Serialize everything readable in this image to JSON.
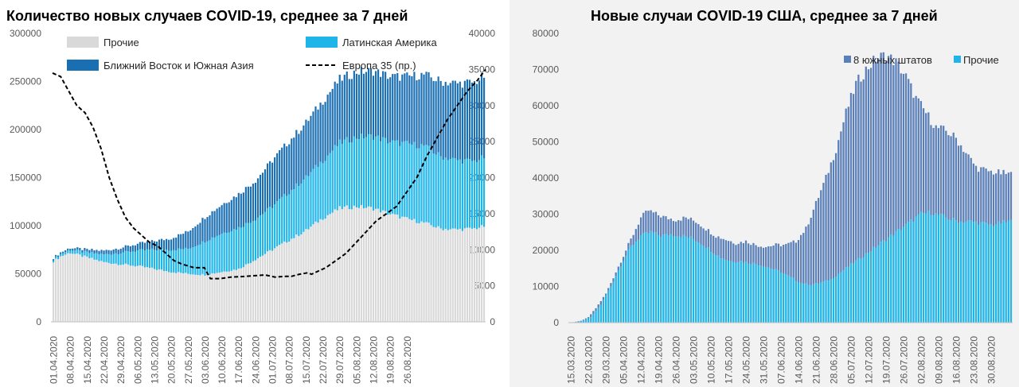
{
  "chart_data": [
    {
      "type": "stacked-bar+line",
      "title": "Количество новых случаев COVID-19, среднее за 7 дней",
      "x_labels": [
        "01.04.2020",
        "08.04.2020",
        "15.04.2020",
        "22.04.2020",
        "29.04.2020",
        "06.05.2020",
        "13.05.2020",
        "20.05.2020",
        "27.05.2020",
        "03.06.2020",
        "10.06.2020",
        "17.06.2020",
        "24.06.2020",
        "01.07.2020",
        "08.07.2020",
        "15.07.2020",
        "22.07.2020",
        "29.07.2020",
        "05.08.2020",
        "12.08.2020",
        "19.08.2020",
        "26.08.2020"
      ],
      "y_left_ticks": [
        "0",
        "50000",
        "100000",
        "150000",
        "200000",
        "250000",
        "300000"
      ],
      "y_right_ticks": [
        "0",
        "5000",
        "10000",
        "15000",
        "20000",
        "25000",
        "30000",
        "35000",
        "40000"
      ],
      "ylim_left": [
        0,
        300000
      ],
      "ylim_right": [
        0,
        40000
      ],
      "legend": [
        "Прочие",
        "Латинская Америка",
        "Ближний Восток и Южная Азия",
        "Европа 35 (пр.)"
      ],
      "colors": {
        "other": "#d9d9d9",
        "latam": "#1fb5e8",
        "me_sa": "#1a6fb3",
        "europe": "#000000"
      },
      "series": {
        "other_points": [
          [
            0,
            63000
          ],
          [
            3,
            68000
          ],
          [
            7,
            72000
          ],
          [
            14,
            67000
          ],
          [
            21,
            62000
          ],
          [
            28,
            60000
          ],
          [
            35,
            58000
          ],
          [
            42,
            55000
          ],
          [
            49,
            52000
          ],
          [
            56,
            50000
          ],
          [
            63,
            49000
          ],
          [
            70,
            52000
          ],
          [
            77,
            55000
          ],
          [
            84,
            65000
          ],
          [
            91,
            75000
          ],
          [
            98,
            85000
          ],
          [
            105,
            95000
          ],
          [
            112,
            108000
          ],
          [
            119,
            118000
          ],
          [
            126,
            120000
          ],
          [
            133,
            118000
          ],
          [
            140,
            112000
          ],
          [
            147,
            107000
          ],
          [
            154,
            103000
          ],
          [
            161,
            97000
          ],
          [
            168,
            96000
          ],
          [
            175,
            97000
          ],
          [
            180,
            100000
          ]
        ],
        "latam_points": [
          [
            0,
            2000
          ],
          [
            7,
            3000
          ],
          [
            14,
            5000
          ],
          [
            21,
            8000
          ],
          [
            28,
            12000
          ],
          [
            35,
            16000
          ],
          [
            42,
            20000
          ],
          [
            49,
            23000
          ],
          [
            56,
            26000
          ],
          [
            63,
            35000
          ],
          [
            70,
            40000
          ],
          [
            77,
            43000
          ],
          [
            84,
            42000
          ],
          [
            91,
            45000
          ],
          [
            98,
            50000
          ],
          [
            105,
            55000
          ],
          [
            112,
            60000
          ],
          [
            119,
            68000
          ],
          [
            126,
            72000
          ],
          [
            133,
            75000
          ],
          [
            140,
            75000
          ],
          [
            147,
            78000
          ],
          [
            154,
            80000
          ],
          [
            161,
            75000
          ],
          [
            168,
            72000
          ],
          [
            175,
            70000
          ],
          [
            180,
            72000
          ]
        ],
        "me_sa_points": [
          [
            0,
            1500
          ],
          [
            7,
            2000
          ],
          [
            14,
            3000
          ],
          [
            21,
            4000
          ],
          [
            28,
            5000
          ],
          [
            35,
            7000
          ],
          [
            42,
            9000
          ],
          [
            49,
            12000
          ],
          [
            56,
            18000
          ],
          [
            63,
            25000
          ],
          [
            70,
            30000
          ],
          [
            77,
            35000
          ],
          [
            84,
            40000
          ],
          [
            91,
            48000
          ],
          [
            98,
            53000
          ],
          [
            105,
            57000
          ],
          [
            112,
            62000
          ],
          [
            119,
            66000
          ],
          [
            126,
            68000
          ],
          [
            133,
            68000
          ],
          [
            140,
            68000
          ],
          [
            147,
            70000
          ],
          [
            154,
            74000
          ],
          [
            161,
            78000
          ],
          [
            168,
            80000
          ],
          [
            175,
            82000
          ],
          [
            180,
            85000
          ]
        ],
        "europe_points": [
          [
            0,
            34500
          ],
          [
            4,
            34000
          ],
          [
            8,
            32000
          ],
          [
            12,
            30000
          ],
          [
            16,
            29000
          ],
          [
            20,
            27000
          ],
          [
            24,
            24000
          ],
          [
            28,
            20000
          ],
          [
            32,
            17000
          ],
          [
            36,
            14500
          ],
          [
            40,
            13000
          ],
          [
            44,
            12000
          ],
          [
            48,
            11000
          ],
          [
            52,
            10500
          ],
          [
            56,
            9500
          ],
          [
            60,
            8500
          ],
          [
            64,
            8000
          ],
          [
            70,
            7500
          ],
          [
            75,
            7500
          ],
          [
            78,
            6000
          ],
          [
            83,
            6000
          ],
          [
            88,
            6200
          ],
          [
            95,
            6300
          ],
          [
            100,
            6400
          ],
          [
            105,
            6500
          ],
          [
            110,
            6200
          ],
          [
            115,
            6300
          ],
          [
            118,
            6300
          ],
          [
            122,
            6600
          ],
          [
            126,
            6800
          ],
          [
            128,
            6600
          ],
          [
            131,
            7000
          ],
          [
            135,
            7500
          ],
          [
            140,
            8500
          ],
          [
            145,
            9500
          ],
          [
            150,
            11000
          ],
          [
            155,
            12500
          ],
          [
            160,
            14000
          ],
          [
            165,
            15000
          ],
          [
            170,
            16000
          ],
          [
            175,
            18000
          ],
          [
            180,
            20000
          ],
          [
            185,
            23000
          ],
          [
            190,
            25500
          ],
          [
            195,
            28000
          ],
          [
            200,
            30000
          ],
          [
            205,
            32000
          ],
          [
            210,
            33500
          ],
          [
            214,
            35000
          ]
        ]
      }
    },
    {
      "type": "stacked-bar",
      "title": "Новые случаи COVID-19  США, среднее за 7 дней",
      "x_labels": [
        "15.03.2020",
        "22.03.2020",
        "29.03.2020",
        "05.04.2020",
        "12.04.2020",
        "19.04.2020",
        "26.04.2020",
        "03.05.2020",
        "10.05.2020",
        "17.05.2020",
        "24.05.2020",
        "31.05.2020",
        "07.06.2020",
        "14.06.2020",
        "21.06.2020",
        "28.06.2020",
        "05.07.2020",
        "12.07.2020",
        "19.07.2020",
        "26.07.2020",
        "02.08.2020",
        "09.08.2020",
        "16.08.2020",
        "23.08.2020",
        "30.08.2020"
      ],
      "y_ticks": [
        "0",
        "10000",
        "20000",
        "30000",
        "40000",
        "50000",
        "60000",
        "70000",
        "80000"
      ],
      "ylim": [
        0,
        80000
      ],
      "legend": [
        "8 южных штатов",
        "Прочие"
      ],
      "colors": {
        "south8": "#5b7fb8",
        "other": "#1fb5e8"
      },
      "series": {
        "total_points": [
          [
            0,
            0
          ],
          [
            4,
            500
          ],
          [
            7,
            1500
          ],
          [
            10,
            4000
          ],
          [
            14,
            8000
          ],
          [
            18,
            14000
          ],
          [
            22,
            20000
          ],
          [
            26,
            26000
          ],
          [
            28,
            29000
          ],
          [
            31,
            31000
          ],
          [
            34,
            30000
          ],
          [
            38,
            29000
          ],
          [
            42,
            28500
          ],
          [
            46,
            29000
          ],
          [
            50,
            28000
          ],
          [
            54,
            26000
          ],
          [
            58,
            24000
          ],
          [
            62,
            23000
          ],
          [
            66,
            22000
          ],
          [
            70,
            22500
          ],
          [
            74,
            21500
          ],
          [
            78,
            21000
          ],
          [
            82,
            21500
          ],
          [
            86,
            21500
          ],
          [
            90,
            22500
          ],
          [
            94,
            26000
          ],
          [
            98,
            33000
          ],
          [
            102,
            40000
          ],
          [
            106,
            48000
          ],
          [
            110,
            58000
          ],
          [
            114,
            66000
          ],
          [
            118,
            70000
          ],
          [
            122,
            73000
          ],
          [
            126,
            74000
          ],
          [
            130,
            72000
          ],
          [
            134,
            68000
          ],
          [
            138,
            62000
          ],
          [
            142,
            58000
          ],
          [
            146,
            54000
          ],
          [
            150,
            53000
          ],
          [
            154,
            51000
          ],
          [
            158,
            47000
          ],
          [
            162,
            43000
          ],
          [
            166,
            42000
          ],
          [
            170,
            41500
          ],
          [
            176,
            41000
          ]
        ],
        "other_points": [
          [
            0,
            0
          ],
          [
            4,
            300
          ],
          [
            8,
            1500
          ],
          [
            12,
            5000
          ],
          [
            16,
            10000
          ],
          [
            20,
            16000
          ],
          [
            24,
            21000
          ],
          [
            28,
            24000
          ],
          [
            32,
            25000
          ],
          [
            36,
            24000
          ],
          [
            40,
            24500
          ],
          [
            44,
            24000
          ],
          [
            48,
            23500
          ],
          [
            52,
            22000
          ],
          [
            56,
            20000
          ],
          [
            60,
            18000
          ],
          [
            64,
            17000
          ],
          [
            68,
            17000
          ],
          [
            72,
            16500
          ],
          [
            76,
            16000
          ],
          [
            80,
            15000
          ],
          [
            84,
            14000
          ],
          [
            88,
            12500
          ],
          [
            92,
            11000
          ],
          [
            96,
            10500
          ],
          [
            100,
            11000
          ],
          [
            104,
            12000
          ],
          [
            108,
            14000
          ],
          [
            112,
            16000
          ],
          [
            116,
            18000
          ],
          [
            120,
            20000
          ],
          [
            124,
            22000
          ],
          [
            128,
            24000
          ],
          [
            132,
            26000
          ],
          [
            136,
            28000
          ],
          [
            140,
            30000
          ],
          [
            144,
            30500
          ],
          [
            148,
            29500
          ],
          [
            152,
            28500
          ],
          [
            156,
            28000
          ],
          [
            160,
            28000
          ],
          [
            164,
            27500
          ],
          [
            168,
            27000
          ],
          [
            172,
            27500
          ],
          [
            176,
            28000
          ]
        ]
      }
    }
  ]
}
